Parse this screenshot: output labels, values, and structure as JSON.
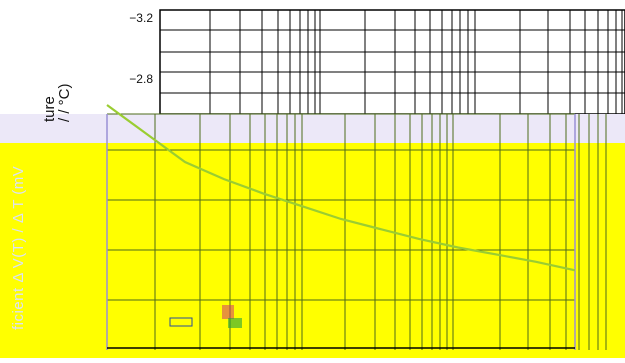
{
  "chart_data": [
    {
      "type": "line",
      "title": "",
      "ylabel": "ture\n/ / °C)",
      "yticks": [
        "−3.2",
        "−2.8"
      ],
      "ylim": [
        -3.2,
        -2.6
      ],
      "grid": true,
      "series": []
    },
    {
      "type": "line",
      "title": "",
      "ylabel": "ficient  Δ V(T) / Δ T (mV",
      "background": "#ffff00",
      "line_color": "#9acd32",
      "grid": true,
      "x": [
        0,
        1,
        2,
        3,
        4,
        5,
        6,
        7,
        8,
        9,
        10,
        11,
        12
      ],
      "series": [
        {
          "values": [
            1.0,
            0.9,
            0.8,
            0.74,
            0.69,
            0.645,
            0.6,
            0.565,
            0.53,
            0.5,
            0.475,
            0.45,
            0.42
          ]
        }
      ],
      "xlim": [
        0,
        12
      ],
      "ylim": [
        0,
        1.0
      ]
    }
  ],
  "colors": {
    "yellow_panel": "#ffff00",
    "overlay_band": "#ece8f8",
    "curve": "#9acd32",
    "grid_dark": "#000000",
    "grid_purple": "#9a8fd6"
  }
}
